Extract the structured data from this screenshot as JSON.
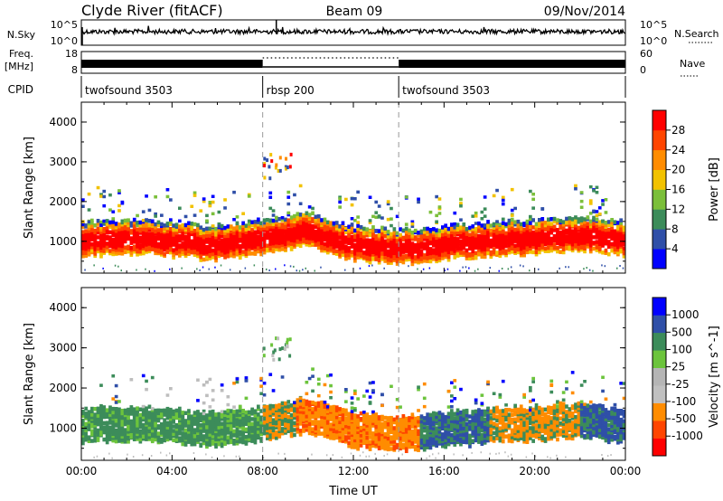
{
  "header": {
    "station": "Clyde River (fitACF)",
    "beam": "Beam 09",
    "date": "09/Nov/2014"
  },
  "top_panels": {
    "nsky_label": "N.Sky",
    "nsky_top_tick": "10^5",
    "nsky_bottom_tick": "10^0",
    "nsearch_label": "N.Search",
    "nsearch_top_tick": "10^5",
    "nsearch_bottom_tick": "10^0",
    "freq_label_line1": "Freq.",
    "freq_label_line2": "[MHz]",
    "freq_top_tick": "18",
    "freq_bottom_tick": "8",
    "nave_label": "Nave",
    "nave_top_tick": "60",
    "nave_bottom_tick": "0",
    "cpid_label": "CPID"
  },
  "cpid_segments": [
    {
      "label": "twofsound 3503",
      "start_hour": 0,
      "end_hour": 8
    },
    {
      "label": "rbsp 200",
      "start_hour": 8,
      "end_hour": 14
    },
    {
      "label": "twofsound 3503",
      "start_hour": 14,
      "end_hour": 24
    }
  ],
  "colors": {
    "power_scale": [
      "#0000ff",
      "#2f4fa8",
      "#3c8c5a",
      "#7bbf3a",
      "#f2c200",
      "#ff8c00",
      "#ff4500",
      "#ff0000"
    ],
    "velocity_scale": [
      "#ff0000",
      "#ff4500",
      "#ff8c00",
      "#c0c0c0",
      "#b5b5b5",
      "#6cc43c",
      "#3c8c5a",
      "#2f4fa8",
      "#0000ff"
    ],
    "ground_scatter": "#bdbdbd",
    "dashed_marker": "#999999"
  },
  "chart_data": [
    {
      "type": "heatmap",
      "panel": "power",
      "ylabel": "Slant Range [km]",
      "colorbar_label": "Power [dB]",
      "colorbar_ticks": [
        "4",
        "8",
        "12",
        "16",
        "20",
        "24",
        "28"
      ],
      "ylim": [
        200,
        4500
      ],
      "yticks": [
        "1000",
        "2000",
        "3000",
        "4000"
      ],
      "xlim": [
        0,
        24
      ],
      "approx_band_center_km": [
        [
          0,
          1000
        ],
        [
          2,
          1050
        ],
        [
          4,
          1000
        ],
        [
          6,
          900
        ],
        [
          8,
          1050
        ],
        [
          10,
          1250
        ],
        [
          12,
          900
        ],
        [
          14,
          800
        ],
        [
          16,
          900
        ],
        [
          18,
          1000
        ],
        [
          20,
          1050
        ],
        [
          22,
          1150
        ],
        [
          24,
          1000
        ]
      ]
    },
    {
      "type": "heatmap",
      "panel": "velocity",
      "ylabel": "Slant Range [km]",
      "colorbar_label": "Velocity [m s^-1]",
      "colorbar_ticks": [
        "1000",
        "500",
        "100",
        "25",
        "-25",
        "-100",
        "-500",
        "-1000"
      ],
      "ylim": [
        200,
        4500
      ],
      "yticks": [
        "1000",
        "2000",
        "3000",
        "4000"
      ],
      "xlim": [
        0,
        24
      ],
      "xlabel": "Time UT",
      "xticks": [
        "00:00",
        "04:00",
        "08:00",
        "12:00",
        "16:00",
        "20:00",
        "00:00"
      ]
    }
  ]
}
